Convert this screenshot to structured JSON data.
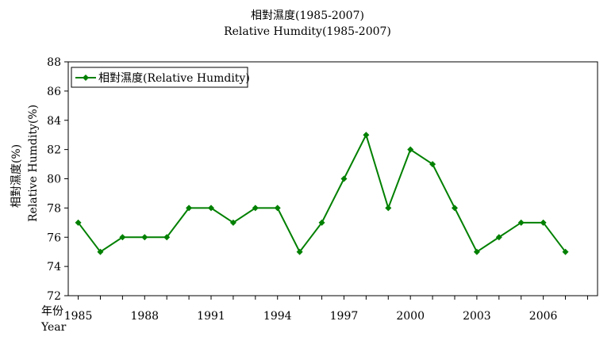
{
  "chart_data": {
    "type": "line",
    "title": "相對濕度(1985-2007)",
    "subtitle": "Relative Humdity(1985-2007)",
    "ylabel_zh": "相對濕度(%)",
    "ylabel_en": "Relative Humdity(%)",
    "xlabel_zh": "年份",
    "xlabel_en": "Year",
    "ylim": [
      72,
      88
    ],
    "yticks": [
      72,
      74,
      76,
      78,
      80,
      82,
      84,
      86,
      88
    ],
    "xticks": [
      1985,
      1988,
      1991,
      1994,
      1997,
      2000,
      2003,
      2006
    ],
    "grid": false,
    "legend_position": "top-left",
    "series": [
      {
        "name": "相對濕度(Relative Humdity)",
        "color": "#008000",
        "x": [
          1985,
          1986,
          1987,
          1988,
          1989,
          1990,
          1991,
          1992,
          1993,
          1994,
          1995,
          1996,
          1997,
          1998,
          1999,
          2000,
          2001,
          2002,
          2003,
          2004,
          2005,
          2006,
          2007
        ],
        "values": [
          77,
          75,
          76,
          76,
          76,
          78,
          78,
          77,
          78,
          78,
          75,
          77,
          80,
          83,
          78,
          82,
          81,
          78,
          75,
          76,
          77,
          77,
          75
        ]
      }
    ]
  }
}
